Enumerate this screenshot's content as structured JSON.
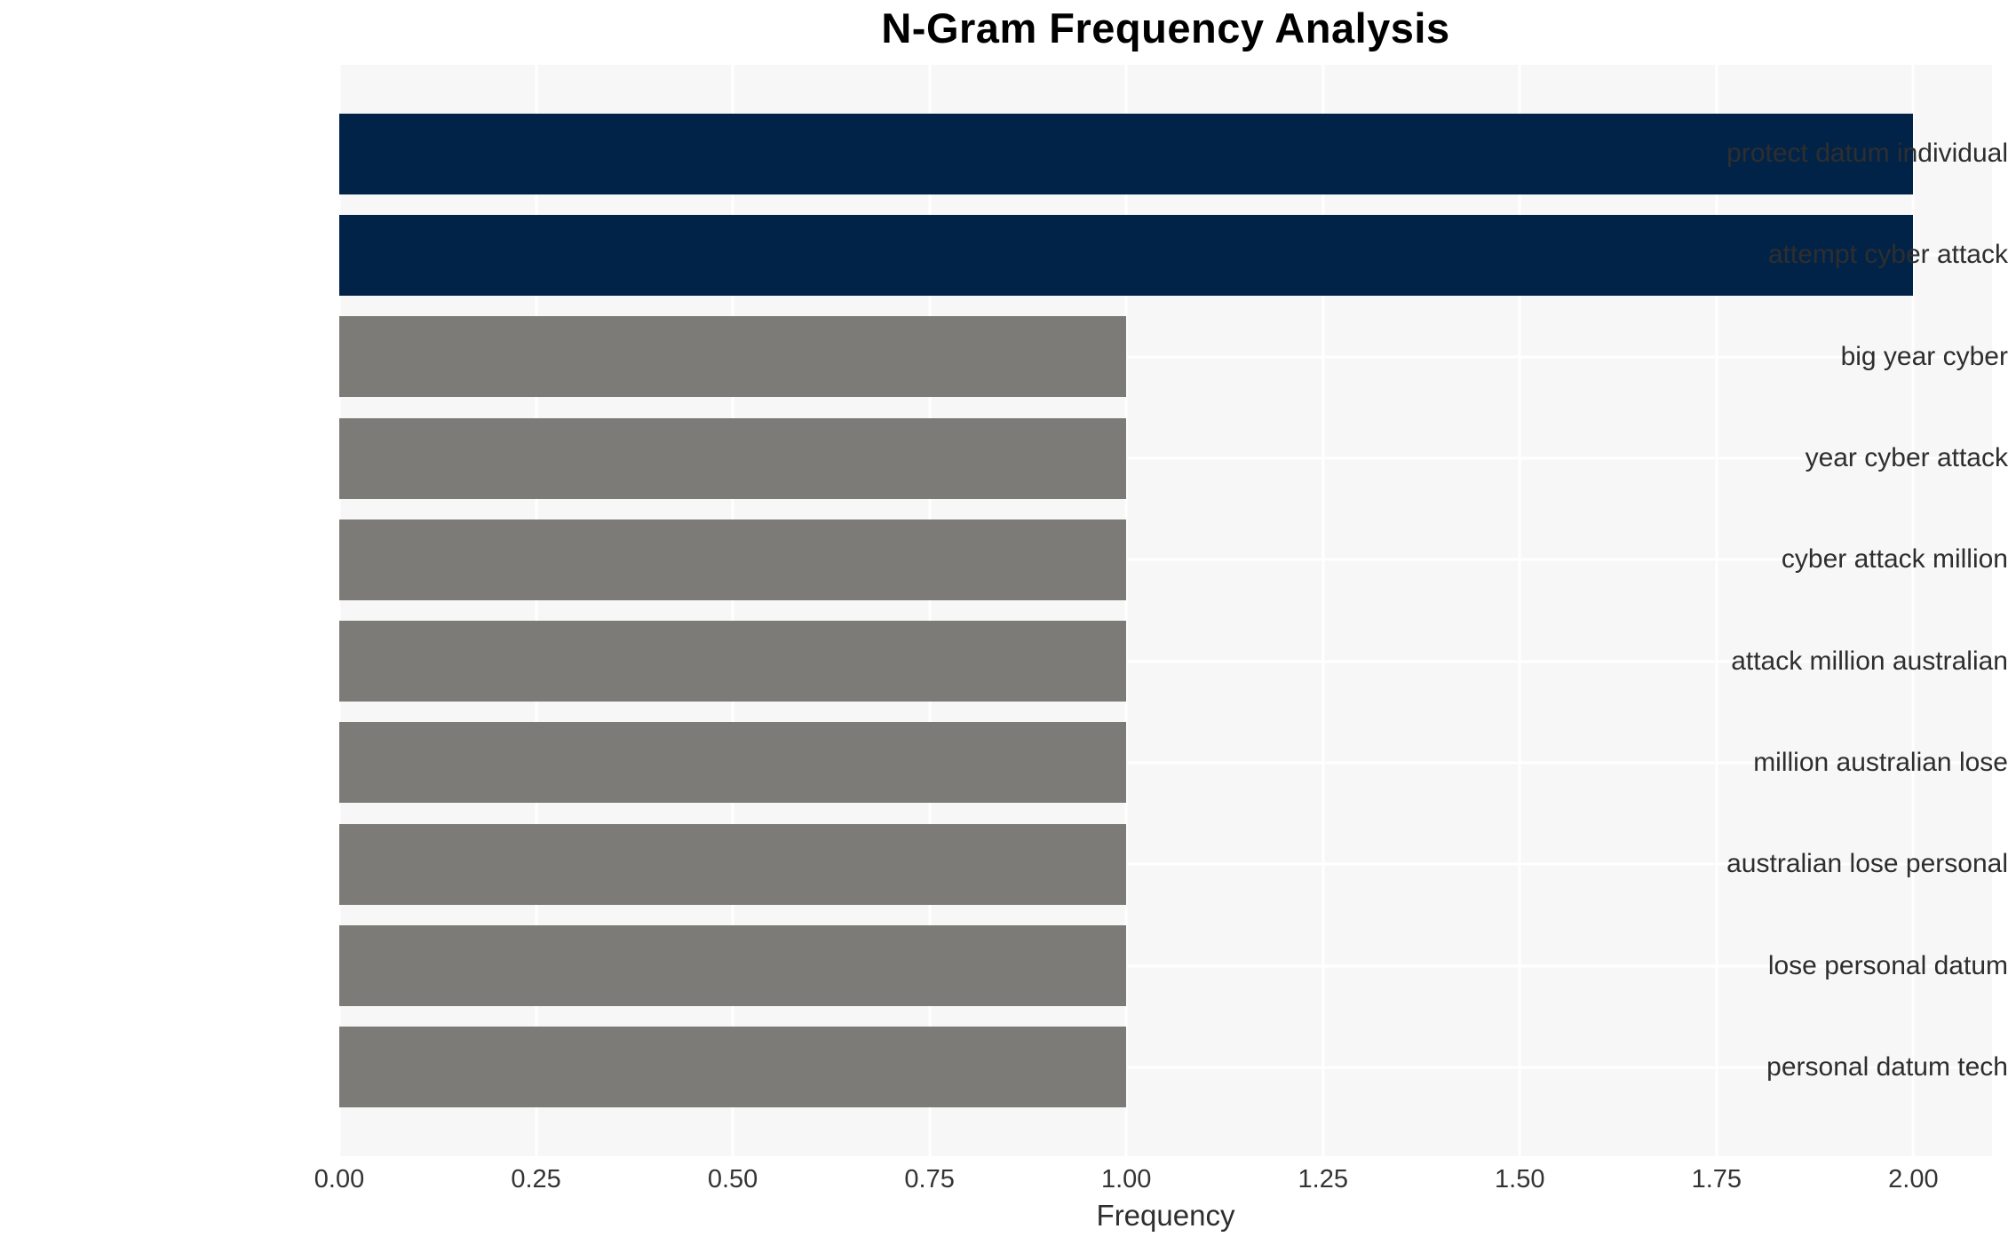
{
  "chart_data": {
    "type": "bar",
    "orientation": "horizontal",
    "title": "N-Gram Frequency Analysis",
    "xlabel": "Frequency",
    "ylabel": "",
    "categories": [
      "protect datum individual",
      "attempt cyber attack",
      "big year cyber",
      "year cyber attack",
      "cyber attack million",
      "attack million australian",
      "million australian lose",
      "australian lose personal",
      "lose personal datum",
      "personal datum tech"
    ],
    "values": [
      2,
      2,
      1,
      1,
      1,
      1,
      1,
      1,
      1,
      1
    ],
    "bar_colors": [
      "#022348",
      "#022348",
      "#7c7b77",
      "#7c7b77",
      "#7c7b77",
      "#7c7b77",
      "#7c7b77",
      "#7c7b77",
      "#7c7b77",
      "#7c7b77"
    ],
    "xlim": [
      0,
      2.1
    ],
    "xticks": [
      {
        "value": 0.0,
        "label": "0.00"
      },
      {
        "value": 0.25,
        "label": "0.25"
      },
      {
        "value": 0.5,
        "label": "0.50"
      },
      {
        "value": 0.75,
        "label": "0.75"
      },
      {
        "value": 1.0,
        "label": "1.00"
      },
      {
        "value": 1.25,
        "label": "1.25"
      },
      {
        "value": 1.5,
        "label": "1.50"
      },
      {
        "value": 1.75,
        "label": "1.75"
      },
      {
        "value": 2.0,
        "label": "2.00"
      }
    ],
    "grid": true,
    "legend": "none",
    "colors": {
      "panel_background": "#f7f7f7",
      "gridline": "#ffffff",
      "highlight_bar": "#022348",
      "base_bar": "#7c7b77",
      "text": "#2e2e2e",
      "title_text": "#000000"
    }
  }
}
